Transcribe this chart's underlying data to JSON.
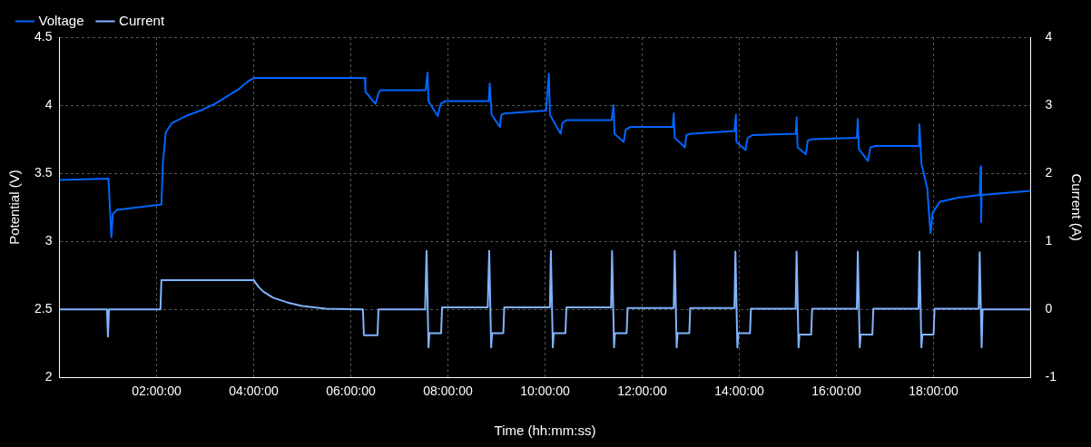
{
  "chart_data": {
    "type": "line",
    "xlabel": "Time (hh:mm:ss)",
    "ylabel": "Potential (V)",
    "y2label": "Current (A)",
    "xlim": [
      0,
      20
    ],
    "xticks": [
      {
        "value": 2,
        "label": "02:00:00"
      },
      {
        "value": 4,
        "label": "04:00:00"
      },
      {
        "value": 6,
        "label": "06:00:00"
      },
      {
        "value": 8,
        "label": "08:00:00"
      },
      {
        "value": 10,
        "label": "10:00:00"
      },
      {
        "value": 12,
        "label": "12:00:00"
      },
      {
        "value": 14,
        "label": "14:00:00"
      },
      {
        "value": 16,
        "label": "16:00:00"
      },
      {
        "value": 18,
        "label": "18:00:00"
      }
    ],
    "ylim": [
      2,
      4.5
    ],
    "yticks": [
      2,
      2.5,
      3,
      3.5,
      4,
      4.5
    ],
    "y2lim": [
      -1,
      4
    ],
    "y2ticks": [
      -1,
      0,
      1,
      2,
      3,
      4
    ],
    "grid": true,
    "legend": "top left",
    "marker": "none",
    "line_style": "solid",
    "series": [
      {
        "name": "Voltage",
        "color": "#0066ff",
        "x": [
          0,
          1.01,
          1.07,
          1.1,
          1.18,
          2.1,
          2.13,
          2.19,
          2.32,
          2.6,
          2.9,
          3.2,
          3.47,
          3.7,
          3.9,
          4.0,
          6.29,
          6.3,
          6.51,
          6.57,
          6.61,
          7.54,
          7.58,
          7.6,
          7.79,
          7.85,
          7.94,
          8.84,
          8.86,
          8.9,
          9.07,
          9.1,
          9.18,
          10.02,
          10.08,
          10.1,
          10.32,
          10.36,
          10.44,
          11.37,
          11.41,
          11.43,
          11.62,
          11.66,
          11.75,
          12.63,
          12.65,
          12.67,
          12.88,
          12.91,
          13.0,
          13.9,
          13.93,
          13.94,
          14.13,
          14.17,
          14.27,
          15.16,
          15.18,
          15.2,
          15.37,
          15.41,
          15.5,
          16.42,
          16.44,
          16.46,
          16.65,
          16.7,
          16.8,
          17.7,
          17.71,
          17.75,
          17.87,
          17.92,
          17.94,
          17.98,
          18.13,
          18.51,
          18.95,
          18.97,
          18.98,
          18.99,
          20.0
        ],
        "values": [
          3.45,
          3.46,
          3.03,
          3.2,
          3.23,
          3.27,
          3.57,
          3.8,
          3.87,
          3.92,
          3.96,
          4.01,
          4.07,
          4.12,
          4.18,
          4.2,
          4.2,
          4.1,
          4.01,
          4.09,
          4.11,
          4.11,
          4.24,
          4.03,
          3.92,
          4.01,
          4.03,
          4.03,
          4.16,
          3.93,
          3.84,
          3.93,
          3.94,
          3.96,
          4.23,
          3.93,
          3.79,
          3.87,
          3.89,
          3.89,
          4.0,
          3.79,
          3.73,
          3.82,
          3.84,
          3.84,
          3.94,
          3.76,
          3.69,
          3.78,
          3.79,
          3.81,
          3.93,
          3.73,
          3.67,
          3.76,
          3.78,
          3.79,
          3.91,
          3.69,
          3.64,
          3.74,
          3.75,
          3.76,
          3.9,
          3.68,
          3.59,
          3.69,
          3.7,
          3.7,
          3.86,
          3.57,
          3.39,
          3.14,
          3.06,
          3.21,
          3.29,
          3.32,
          3.34,
          3.55,
          3.14,
          3.34,
          3.37
        ]
      },
      {
        "name": "Current",
        "color": "#80b3ff",
        "axis": "y2",
        "x": [
          0,
          0.98,
          1.0,
          1.02,
          2.08,
          2.1,
          4.0,
          4.1,
          4.2,
          4.4,
          4.7,
          5.0,
          5.5,
          6.25,
          6.27,
          6.55,
          6.57,
          7.53,
          7.56,
          7.6,
          7.62,
          7.86,
          7.88,
          8.82,
          8.85,
          8.89,
          8.91,
          9.14,
          9.16,
          10.1,
          10.12,
          10.16,
          10.18,
          10.42,
          10.44,
          11.36,
          11.38,
          11.42,
          11.44,
          11.68,
          11.7,
          12.65,
          12.67,
          12.71,
          12.73,
          12.97,
          12.99,
          13.9,
          13.92,
          13.96,
          13.98,
          14.22,
          14.24,
          15.16,
          15.18,
          15.22,
          15.24,
          15.48,
          15.5,
          16.42,
          16.44,
          16.48,
          16.5,
          16.74,
          16.76,
          17.69,
          17.71,
          17.75,
          17.77,
          18.0,
          18.02,
          18.93,
          18.95,
          18.99,
          19.01,
          20.0
        ],
        "values": [
          0,
          0,
          -0.4,
          0,
          0,
          0.43,
          0.43,
          0.33,
          0.26,
          0.17,
          0.1,
          0.05,
          0.01,
          0,
          -0.38,
          -0.38,
          0,
          0,
          0.86,
          -0.56,
          -0.35,
          -0.35,
          0.03,
          0.03,
          0.86,
          -0.56,
          -0.35,
          -0.35,
          0.03,
          0.03,
          0.86,
          -0.56,
          -0.35,
          -0.35,
          0.03,
          0.03,
          0.86,
          -0.56,
          -0.35,
          -0.35,
          0.02,
          0.02,
          0.86,
          -0.56,
          -0.35,
          -0.35,
          0.02,
          0.02,
          0.85,
          -0.56,
          -0.35,
          -0.35,
          0.01,
          0.01,
          0.85,
          -0.56,
          -0.37,
          -0.37,
          0.01,
          0.01,
          0.85,
          -0.56,
          -0.37,
          -0.37,
          0.01,
          0.01,
          0.85,
          -0.56,
          -0.37,
          -0.37,
          0.01,
          0.01,
          0.84,
          -0.56,
          0,
          0
        ]
      }
    ]
  }
}
